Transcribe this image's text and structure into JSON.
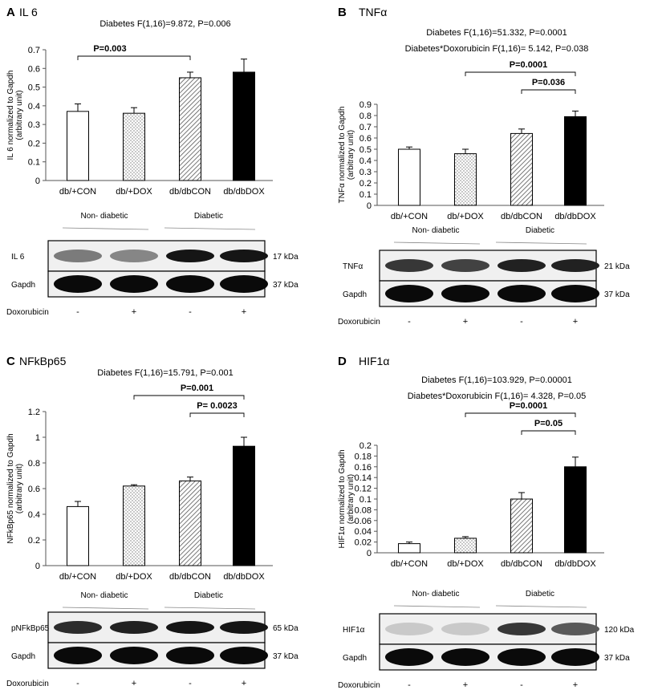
{
  "chart_data": [
    {
      "type": "bar",
      "letter": "A",
      "title": "IL 6",
      "stats": [
        "Diabetes F(1,16)=9.872, P=0.006"
      ],
      "ylabel": [
        "IL 6 normalized to Gapdh",
        "(arbitrary unit)"
      ],
      "categories": [
        "db/+CON",
        "db/+DOX",
        "db/dbCON",
        "db/dbDOX"
      ],
      "values": [
        0.37,
        0.36,
        0.55,
        0.58
      ],
      "errors": [
        0.04,
        0.03,
        0.03,
        0.07
      ],
      "ylim": [
        0,
        0.7
      ],
      "yticks": [
        "0",
        "0.1",
        "0.2",
        "0.3",
        "0.4",
        "0.5",
        "0.6",
        "0.7"
      ],
      "comparisons": [
        {
          "from": 0,
          "to": 2,
          "label": "P=0.003"
        }
      ],
      "blot": {
        "groups": [
          "Non- diabetic",
          "Diabetic"
        ],
        "rows": [
          {
            "name": "IL 6",
            "kda": "17 kDa"
          },
          {
            "name": "Gapdh",
            "kda": "37 kDa"
          }
        ],
        "treatment_label": "Doxorubicin",
        "treatment": [
          "-",
          "+",
          "-",
          "+"
        ],
        "intensity": [
          [
            0.5,
            0.45,
            0.95,
            0.95
          ],
          [
            1,
            1,
            1,
            1
          ]
        ]
      }
    },
    {
      "type": "bar",
      "letter": "B",
      "title": "TNFα",
      "stats": [
        "Diabetes F(1,16)=51.332, P=0.0001",
        "Diabetes*Doxorubicin F(1,16)= 5.142, P=0.038"
      ],
      "ylabel": [
        "TNFα normalized to Gapdh",
        "(arbitrary unit)"
      ],
      "categories": [
        "db/+CON",
        "db/+DOX",
        "db/dbCON",
        "db/dbDOX"
      ],
      "values": [
        0.5,
        0.46,
        0.64,
        0.79
      ],
      "errors": [
        0.02,
        0.04,
        0.04,
        0.05
      ],
      "ylim": [
        0,
        0.9
      ],
      "yticks": [
        "0",
        "0.1",
        "0.2",
        "0.3",
        "0.4",
        "0.5",
        "0.6",
        "0.7",
        "0.8",
        "0.9"
      ],
      "comparisons": [
        {
          "from": 1,
          "to": 3,
          "label": "P=0.0001"
        },
        {
          "from": 2,
          "to": 3,
          "label": "P=0.036"
        }
      ],
      "blot": {
        "groups": [
          "Non- diabetic",
          "Diabetic"
        ],
        "rows": [
          {
            "name": "TNFα",
            "kda": "21 kDa"
          },
          {
            "name": "Gapdh",
            "kda": "37 kDa"
          }
        ],
        "treatment_label": "Doxorubicin",
        "treatment": [
          "-",
          "+",
          "-",
          "+"
        ],
        "intensity": [
          [
            0.8,
            0.75,
            0.9,
            0.9
          ],
          [
            1,
            1,
            1,
            1
          ]
        ]
      }
    },
    {
      "type": "bar",
      "letter": "C",
      "title": "NFkBp65",
      "stats": [
        "Diabetes F(1,16)=15.791, P=0.001"
      ],
      "ylabel": [
        "NFkBp65 normalized to Gapdh",
        "(arbitrary unit)"
      ],
      "categories": [
        "db/+CON",
        "db/+DOX",
        "db/dbCON",
        "db/dbDOX"
      ],
      "values": [
        0.46,
        0.62,
        0.66,
        0.93
      ],
      "errors": [
        0.04,
        0.01,
        0.03,
        0.07
      ],
      "ylim": [
        0,
        1.2
      ],
      "yticks": [
        "0",
        "0.2",
        "0.4",
        "0.6",
        "0.8",
        "1",
        "1.2"
      ],
      "comparisons": [
        {
          "from": 1,
          "to": 3,
          "label": "P=0.001"
        },
        {
          "from": 2,
          "to": 3,
          "label": "P= 0.0023"
        }
      ],
      "blot": {
        "groups": [
          "Non- diabetic",
          "Diabetic"
        ],
        "rows": [
          {
            "name": "pNFkBp65",
            "kda": "65 kDa"
          },
          {
            "name": "Gapdh",
            "kda": "37 kDa"
          }
        ],
        "treatment_label": "Doxorubicin",
        "treatment": [
          "-",
          "+",
          "-",
          "+"
        ],
        "intensity": [
          [
            0.85,
            0.9,
            0.95,
            0.95
          ],
          [
            1,
            1,
            1,
            1
          ]
        ]
      }
    },
    {
      "type": "bar",
      "letter": "D",
      "title": "HIF1α",
      "stats": [
        "Diabetes F(1,16)=103.929, P=0.00001",
        "Diabetes*Doxorubicin F(1,16)= 4.328, P=0.05"
      ],
      "ylabel": [
        "HIF1α normalized to Gapdh",
        "(arbitrary unit)"
      ],
      "categories": [
        "db/+CON",
        "db/+DOX",
        "db/dbCON",
        "db/dbDOX"
      ],
      "values": [
        0.017,
        0.027,
        0.1,
        0.16
      ],
      "errors": [
        0.003,
        0.003,
        0.012,
        0.018
      ],
      "ylim": [
        0,
        0.2
      ],
      "yticks": [
        "0",
        "0.02",
        "0.04",
        "0.06",
        "0.08",
        "0.1",
        "0.12",
        "0.14",
        "0.16",
        "0.18",
        "0.2"
      ],
      "comparisons": [
        {
          "from": 1,
          "to": 3,
          "label": "P=0.0001"
        },
        {
          "from": 2,
          "to": 3,
          "label": "P=0.05"
        }
      ],
      "blot": {
        "groups": [
          "Non- diabetic",
          "Diabetic"
        ],
        "rows": [
          {
            "name": "HIF1α",
            "kda": "120 kDa"
          },
          {
            "name": "Gapdh",
            "kda": "37 kDa"
          }
        ],
        "treatment_label": "Doxorubicin",
        "treatment": [
          "-",
          "+",
          "-",
          "+"
        ],
        "intensity": [
          [
            0.15,
            0.15,
            0.8,
            0.65
          ],
          [
            1,
            1,
            1,
            1
          ]
        ]
      }
    }
  ]
}
